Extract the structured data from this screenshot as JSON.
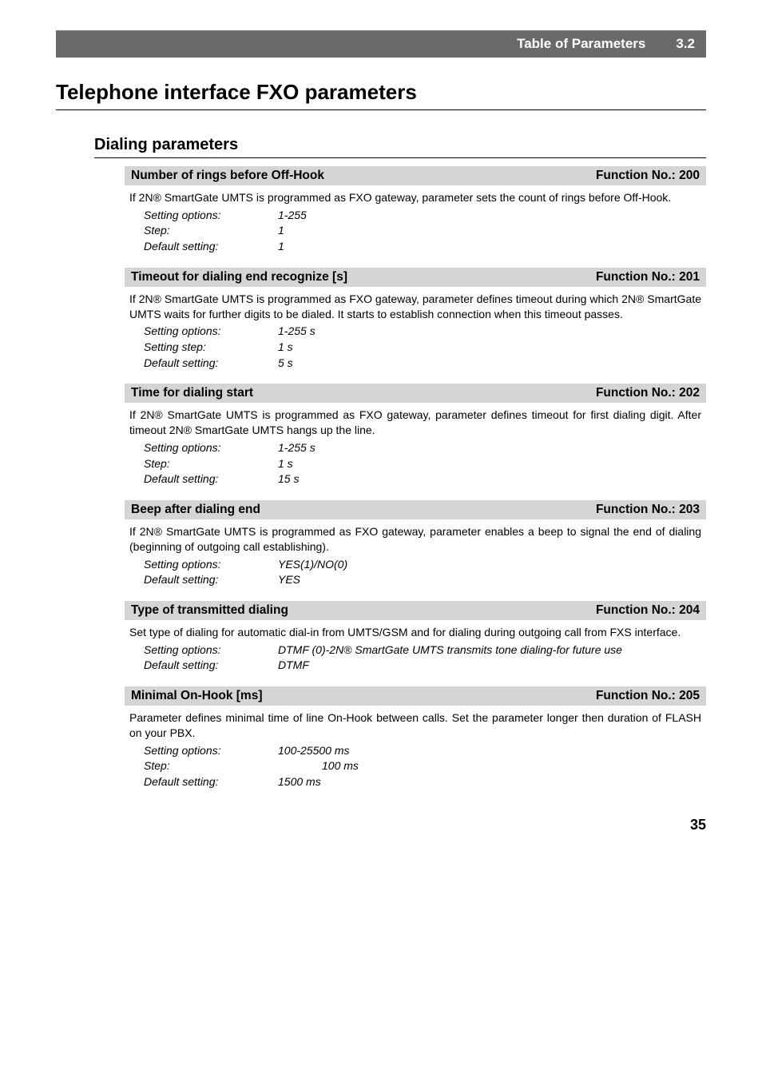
{
  "header": {
    "title": "Table of Parameters",
    "chapter": "3.2",
    "bg_color": "#6a6a6a",
    "text_color": "#ffffff"
  },
  "main_title": "Telephone interface FXO parameters",
  "subsection_title": "Dialing parameters",
  "params": [
    {
      "title": "Number of rings before Off-Hook",
      "fn": "Function No.: 200",
      "body": "If 2N® SmartGate UMTS is programmed as FXO gateway, parameter sets the count of rings before Off-Hook.",
      "settings": [
        {
          "label": "Setting options:",
          "value": "1-255"
        },
        {
          "label": "Step:",
          "value": "1"
        },
        {
          "label": "Default setting:",
          "value": "1"
        }
      ]
    },
    {
      "title": "Timeout for dialing end recognize [s]",
      "fn": "Function No.: 201",
      "body": "If 2N® SmartGate UMTS is programmed as FXO gateway, parameter defines timeout during which 2N® SmartGate UMTS waits for further digits to be dialed. It starts to establish connection when this timeout passes.",
      "settings": [
        {
          "label": "Setting options:",
          "value": "1-255 s"
        },
        {
          "label": "Setting step:",
          "value": "1 s"
        },
        {
          "label": "Default setting:",
          "value": "5 s"
        }
      ]
    },
    {
      "title": "Time for dialing start",
      "fn": "Function No.: 202",
      "body": "If 2N® SmartGate UMTS is programmed as FXO gateway, parameter defines timeout for first dialing digit. After timeout 2N® SmartGate UMTS hangs up the line.",
      "settings": [
        {
          "label": "Setting options:",
          "value": "1-255 s"
        },
        {
          "label": "Step:",
          "value": "1 s"
        },
        {
          "label": "Default setting:",
          "value": "15 s"
        }
      ]
    },
    {
      "title": "Beep after dialing end",
      "fn": "Function No.: 203",
      "body": "If 2N® SmartGate UMTS is programmed as FXO gateway, parameter enables a beep to signal the end of dialing (beginning of outgoing call establishing).",
      "settings": [
        {
          "label": "Setting options:",
          "value": "YES(1)/NO(0)"
        },
        {
          "label": "Default setting:",
          "value": "YES"
        }
      ]
    },
    {
      "title": "Type of transmitted dialing",
      "fn": "Function No.: 204",
      "body": "Set type of dialing for automatic dial-in from UMTS/GSM and for dialing during outgoing call from FXS interface.",
      "settings": [
        {
          "label": "Setting options:",
          "value": "DTMF (0)-2N® SmartGate UMTS transmits tone dialing-for future use"
        },
        {
          "label": "Default setting:",
          "value": "DTMF"
        }
      ]
    },
    {
      "title": "Minimal On-Hook [ms]",
      "fn": "Function No.: 205",
      "body": "Parameter defines minimal time of line On-Hook between calls. Set the parameter longer then duration of FLASH on your PBX.",
      "settings": [
        {
          "label": "Setting options:",
          "value": "100-25500 ms"
        },
        {
          "label": "Step:",
          "value": "100 ms",
          "indent": true
        },
        {
          "label": "Default setting:",
          "value": "1500 ms"
        }
      ]
    }
  ],
  "footer_page": "35",
  "colors": {
    "param_title_bg": "#d5d5d5"
  }
}
